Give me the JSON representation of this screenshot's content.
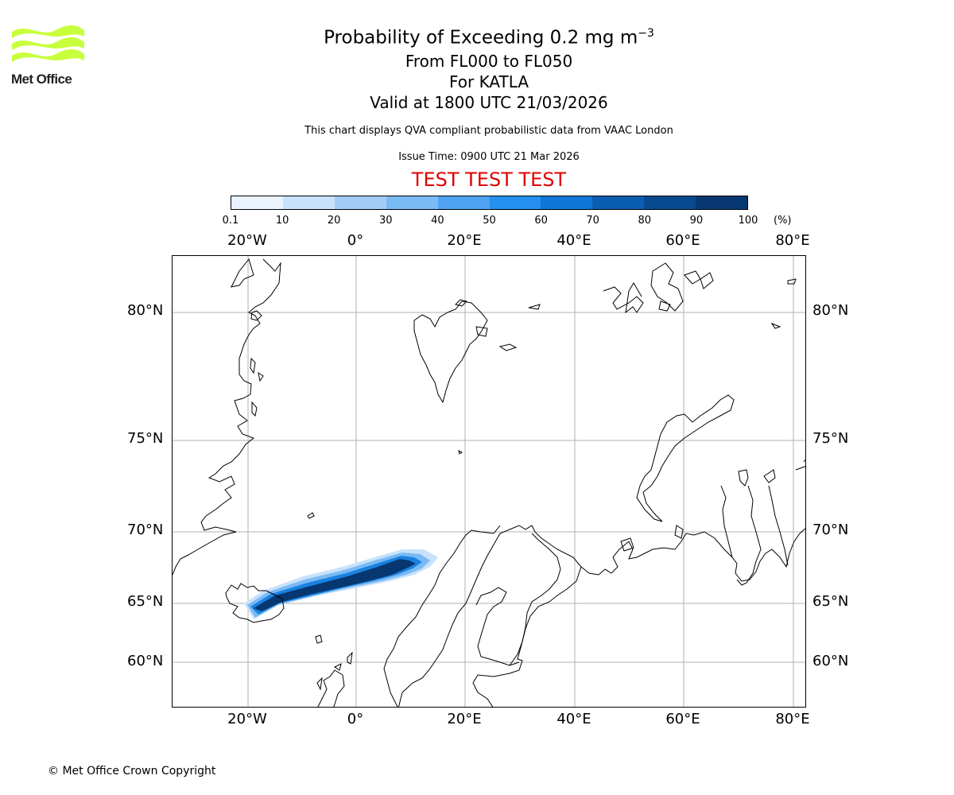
{
  "logo": {
    "name": "Met Office",
    "text": "Met Office",
    "color": "#c8ff3c"
  },
  "title": {
    "main": "Probability of Exceeding 0.2 mg m",
    "main_exponent": "−3",
    "levels": "From FL000 to FL050",
    "volcano": "For KATLA",
    "valid": "Valid at 1800 UTC 21/03/2026"
  },
  "description": "This chart displays QVA compliant probabilistic data from VAAC London",
  "issue_time": "Issue Time: 0900 UTC 21 Mar 2026",
  "test_banner": "TEST TEST TEST",
  "colorbar": {
    "ticks": [
      "0.1",
      "10",
      "20",
      "30",
      "40",
      "50",
      "60",
      "70",
      "80",
      "90",
      "100"
    ],
    "unit": "(%)",
    "colors": [
      "#eaf3fd",
      "#c8e2fb",
      "#a3cdf8",
      "#7abaf5",
      "#4fa3f2",
      "#2590ed",
      "#0f78d6",
      "#0b5db1",
      "#084a90",
      "#063771"
    ]
  },
  "map": {
    "lon_labels": [
      "20°W",
      "0°",
      "20°E",
      "40°E",
      "60°E",
      "80°E"
    ],
    "lat_labels": [
      "80°N",
      "75°N",
      "70°N",
      "65°N",
      "60°N"
    ],
    "grid": true,
    "gridline_color": "#b0b0b0",
    "coastline_color": "#000000",
    "plume": {
      "source": "KATLA",
      "max_probability_pct": 100
    }
  },
  "copyright": "© Met Office Crown Copyright"
}
